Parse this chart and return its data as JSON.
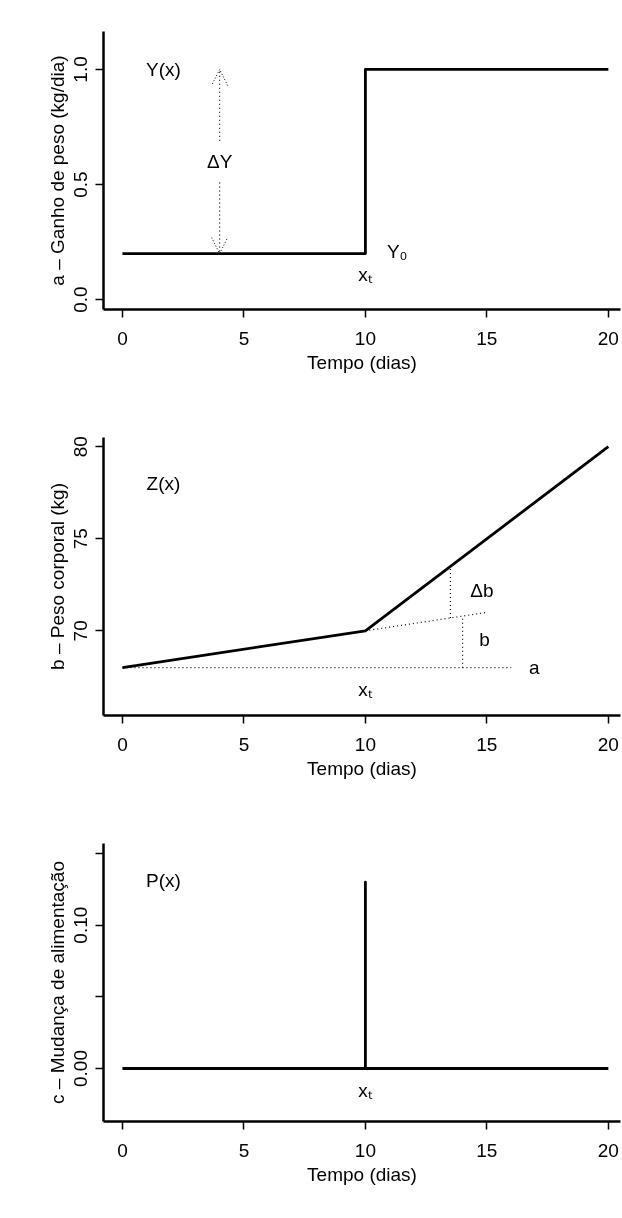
{
  "chart_data": [
    {
      "type": "step",
      "xlabel": "Tempo (dias)",
      "ylabel": "a – Ganho de peso (kg/dia)",
      "xlim": [
        -0.78,
        20.5
      ],
      "ylim": [
        -0.043,
        1.165
      ],
      "xticks": [
        0,
        5,
        10,
        15,
        20
      ],
      "yticks": [
        {
          "value": 0,
          "label": "0.0"
        },
        {
          "value": 0.5,
          "label": "0.5"
        },
        {
          "value": 1,
          "label": "1.0"
        }
      ],
      "series": [
        {
          "color": "#000000",
          "x": [
            0,
            10,
            20
          ],
          "values": [
            0.2,
            1.0,
            1.0
          ]
        }
      ],
      "annotations": [
        "Y(x)",
        {
          "text": "ΔY",
          "x": 4,
          "y": 0.2
        },
        "Y₀",
        "xₜ"
      ]
    },
    {
      "type": "line",
      "xlabel": "Tempo (dias)",
      "ylabel": "b – Peso corporal (kg)",
      "xlim": [
        -0.78,
        20.5
      ],
      "ylim": [
        65.4,
        80.5
      ],
      "xticks": [
        0,
        5,
        10,
        15,
        20
      ],
      "yticks": [
        70,
        75,
        80
      ],
      "series": [
        {
          "color": "#000000",
          "x": [
            0,
            10,
            20
          ],
          "values": [
            68,
            70,
            80
          ]
        },
        {
          "line_style": "dotted",
          "color": "#000000",
          "x": [
            0,
            16
          ],
          "values": [
            68,
            68
          ]
        },
        {
          "line_style": "dotted",
          "color": "#000000",
          "x": [
            10,
            15
          ],
          "values": [
            70,
            71
          ]
        },
        {
          "line_style": "dotted",
          "color": "#000000",
          "x": [
            13.5,
            13.5
          ],
          "values": [
            70.7,
            73.5
          ]
        },
        {
          "line_style": "dotted",
          "color": "#000000",
          "x": [
            14,
            14
          ],
          "values": [
            68,
            70.8
          ]
        }
      ],
      "annotations": [
        "Z(x)",
        "Δb",
        "b",
        "a",
        "xₜ"
      ]
    },
    {
      "type": "line",
      "xlabel": "Tempo (dias)",
      "ylabel": "c – Mudança de alimentação",
      "xlim": [
        -0.78,
        20.5
      ],
      "ylim": [
        -0.037,
        0.157
      ],
      "xticks": [
        0,
        5,
        10,
        15,
        20
      ],
      "yticks": [
        {
          "value": 0,
          "label": "0.00"
        },
        {
          "value": 0.05,
          "label": null
        },
        {
          "value": 0.1,
          "label": "0.10"
        },
        {
          "value": 0.15,
          "label": null
        }
      ],
      "series": [
        {
          "color": "#000000",
          "x": [
            0,
            10,
            10,
            10,
            20
          ],
          "values": [
            0,
            0,
            0.13,
            0,
            0
          ]
        }
      ],
      "annotations": [
        "P(x)",
        "xₜ"
      ]
    }
  ]
}
